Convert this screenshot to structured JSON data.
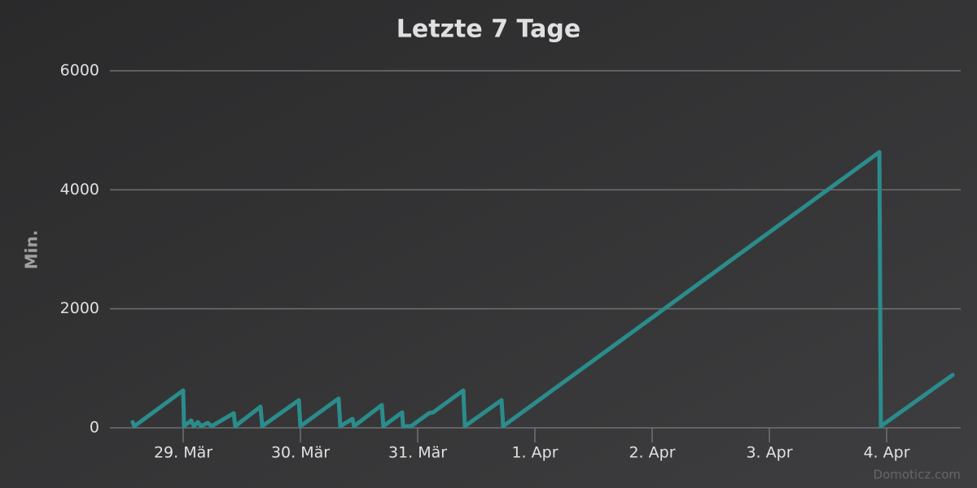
{
  "chart_data": {
    "type": "line",
    "title": "Letzte 7 Tage",
    "y_label": "Min.",
    "credit": "Domoticz.com",
    "x": [
      -0.431,
      -0.417,
      0,
      0.007,
      0.069,
      0.09,
      0.125,
      0.153,
      0.208,
      0.243,
      0.431,
      0.444,
      0.66,
      0.674,
      0.986,
      1.0,
      1.326,
      1.34,
      1.444,
      1.458,
      1.694,
      1.708,
      1.868,
      1.875,
      1.944,
      2.097,
      2.132,
      2.389,
      2.403,
      2.715,
      2.729,
      5.938,
      5.951,
      6.563
    ],
    "series": [
      {
        "color": "#2b8c8c",
        "values": [
          96,
          27,
          629,
          27,
          123,
          27,
          96,
          27,
          82,
          27,
          246,
          27,
          355,
          27,
          465,
          27,
          492,
          27,
          150,
          27,
          383,
          27,
          260,
          27,
          27,
          246,
          260,
          629,
          27,
          465,
          27,
          4633,
          27,
          889
        ]
      }
    ],
    "xlim": [
      -0.625,
      6.632
    ],
    "xticks": [
      {
        "value": 0,
        "label": "29. Mär"
      },
      {
        "value": 1,
        "label": "30. Mär"
      },
      {
        "value": 2,
        "label": "31. Mär"
      },
      {
        "value": 3,
        "label": "1. Apr"
      },
      {
        "value": 4,
        "label": "2. Apr"
      },
      {
        "value": 5,
        "label": "3. Apr"
      },
      {
        "value": 6,
        "label": "4. Apr"
      }
    ],
    "ylim": [
      0,
      6000
    ],
    "yticks": [
      0,
      2000,
      4000,
      6000
    ],
    "grid": true
  }
}
